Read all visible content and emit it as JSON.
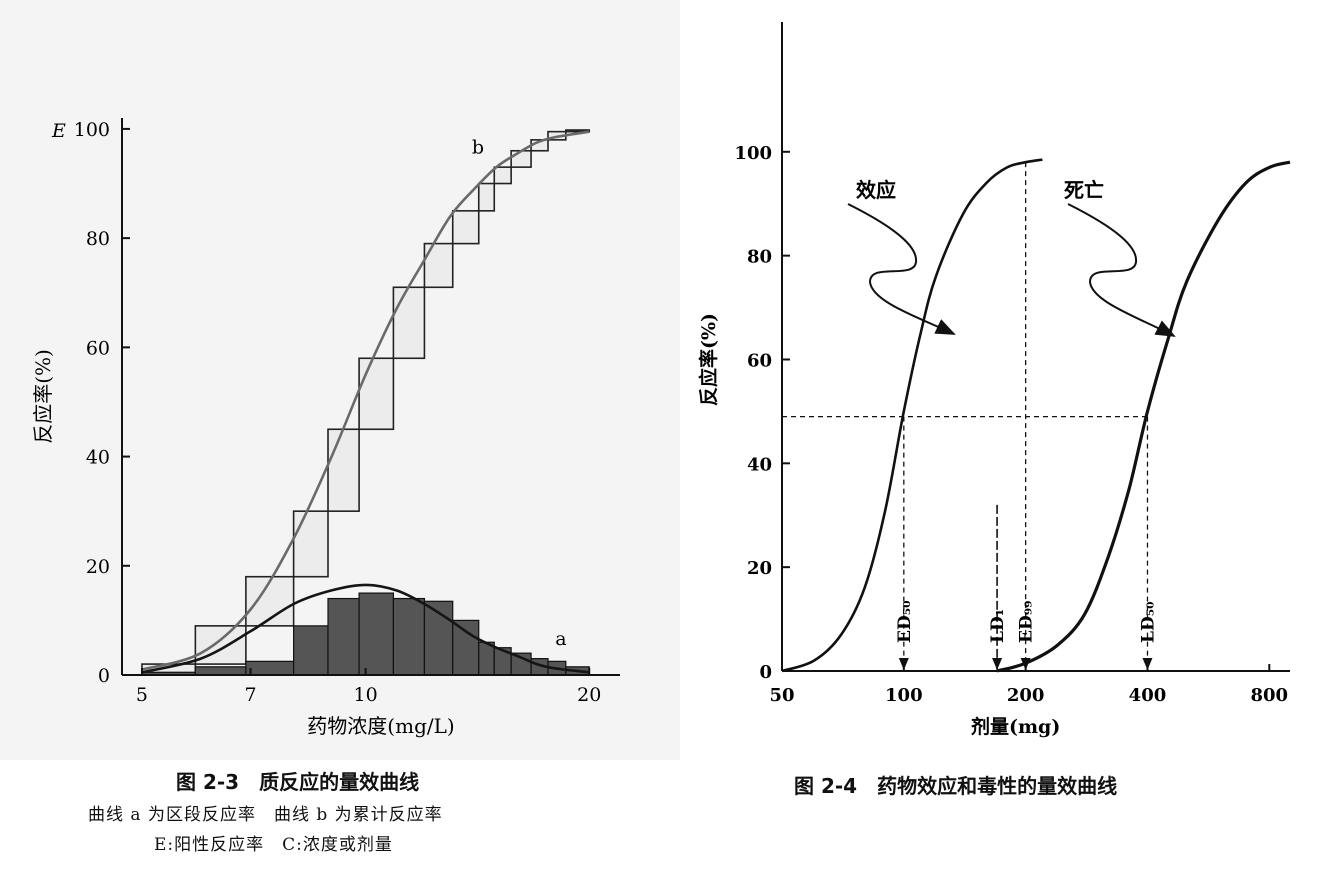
{
  "figures": [
    {
      "caption_title": "图 2-3　质反应的量效曲线",
      "caption_lines": [
        "曲线 a 为区段反应率　曲线 b 为累计反应率",
        "E:阳性反应率　C:浓度或剂量"
      ]
    },
    {
      "caption_title": "图 2-4　药物效应和毒性的量效曲线",
      "caption_lines": []
    }
  ],
  "chart_data": [
    {
      "type": "bar",
      "y_axis_symbol": "E",
      "ylabel": "反应率(%)",
      "xlabel": "药物浓度(mg/L)",
      "x_scale": "log",
      "x_ticks": [
        5,
        7,
        10,
        20
      ],
      "y_ticks": [
        0,
        20,
        40,
        60,
        80,
        100
      ],
      "xlim": [
        4.7,
        22
      ],
      "ylim": [
        0,
        102
      ],
      "bin_edges": [
        5.0,
        5.9,
        6.9,
        8.0,
        8.9,
        9.8,
        10.9,
        12.0,
        13.1,
        14.2,
        14.9,
        15.7,
        16.7,
        17.6,
        18.6,
        20.0
      ],
      "series": [
        {
          "name": "a",
          "style": "bars-dark",
          "values": [
            0.5,
            1.5,
            2.5,
            9,
            14,
            15,
            14,
            13.5,
            10,
            6,
            5,
            4,
            3,
            2.5,
            1.5
          ]
        },
        {
          "name": "b",
          "style": "steps-light",
          "values": [
            2,
            9,
            18,
            30,
            45,
            58,
            71,
            79,
            85,
            90,
            93,
            96,
            98,
            99.5,
            99.8
          ]
        }
      ],
      "fitted_curves": [
        {
          "name": "a",
          "x": [
            5,
            6,
            7,
            8,
            9,
            10,
            11,
            12,
            13,
            14,
            15,
            16,
            17,
            18,
            20
          ],
          "y": [
            0.5,
            3,
            8,
            13,
            15.5,
            16.5,
            15.5,
            13,
            10,
            7,
            5,
            3.5,
            2,
            1.2,
            0.5
          ]
        },
        {
          "name": "b",
          "x": [
            5,
            6,
            7,
            8,
            9,
            10,
            11,
            12,
            13,
            14,
            15,
            16,
            17,
            18,
            20
          ],
          "y": [
            1,
            4,
            12,
            25,
            40,
            55,
            67,
            76,
            84,
            89,
            93,
            95.5,
            97.5,
            98.5,
            99.5
          ]
        }
      ],
      "curve_labels": [
        "a",
        "b"
      ]
    },
    {
      "type": "line",
      "ylabel": "反应率(%)",
      "xlabel": "剂量(mg)",
      "x_scale": "log",
      "x_ticks": [
        50,
        100,
        200,
        400,
        800
      ],
      "y_ticks": [
        0,
        20,
        40,
        60,
        80,
        100
      ],
      "xlim": [
        50,
        900
      ],
      "ylim": [
        0,
        125
      ],
      "series": [
        {
          "name": "效应",
          "x": [
            50,
            60,
            70,
            80,
            90,
            100,
            110,
            120,
            140,
            160,
            180,
            200,
            220
          ],
          "y": [
            0,
            2,
            7,
            16,
            31,
            50,
            65,
            76,
            88,
            94,
            97,
            98,
            98.5
          ]
        },
        {
          "name": "死亡",
          "x": [
            170,
            200,
            240,
            280,
            320,
            360,
            400,
            450,
            500,
            600,
            700,
            800,
            900
          ],
          "y": [
            0,
            1.5,
            5,
            11,
            22,
            35,
            50,
            64,
            75,
            87,
            94,
            97,
            98
          ]
        }
      ],
      "annotations": [
        {
          "label": "ED₅₀",
          "x": 100,
          "y": 49
        },
        {
          "label": "LD₁",
          "x": 170,
          "y": 32
        },
        {
          "label": "ED₉₉",
          "x": 200,
          "y": 98
        },
        {
          "label": "LD₅₀",
          "x": 400,
          "y": 49
        }
      ]
    }
  ]
}
